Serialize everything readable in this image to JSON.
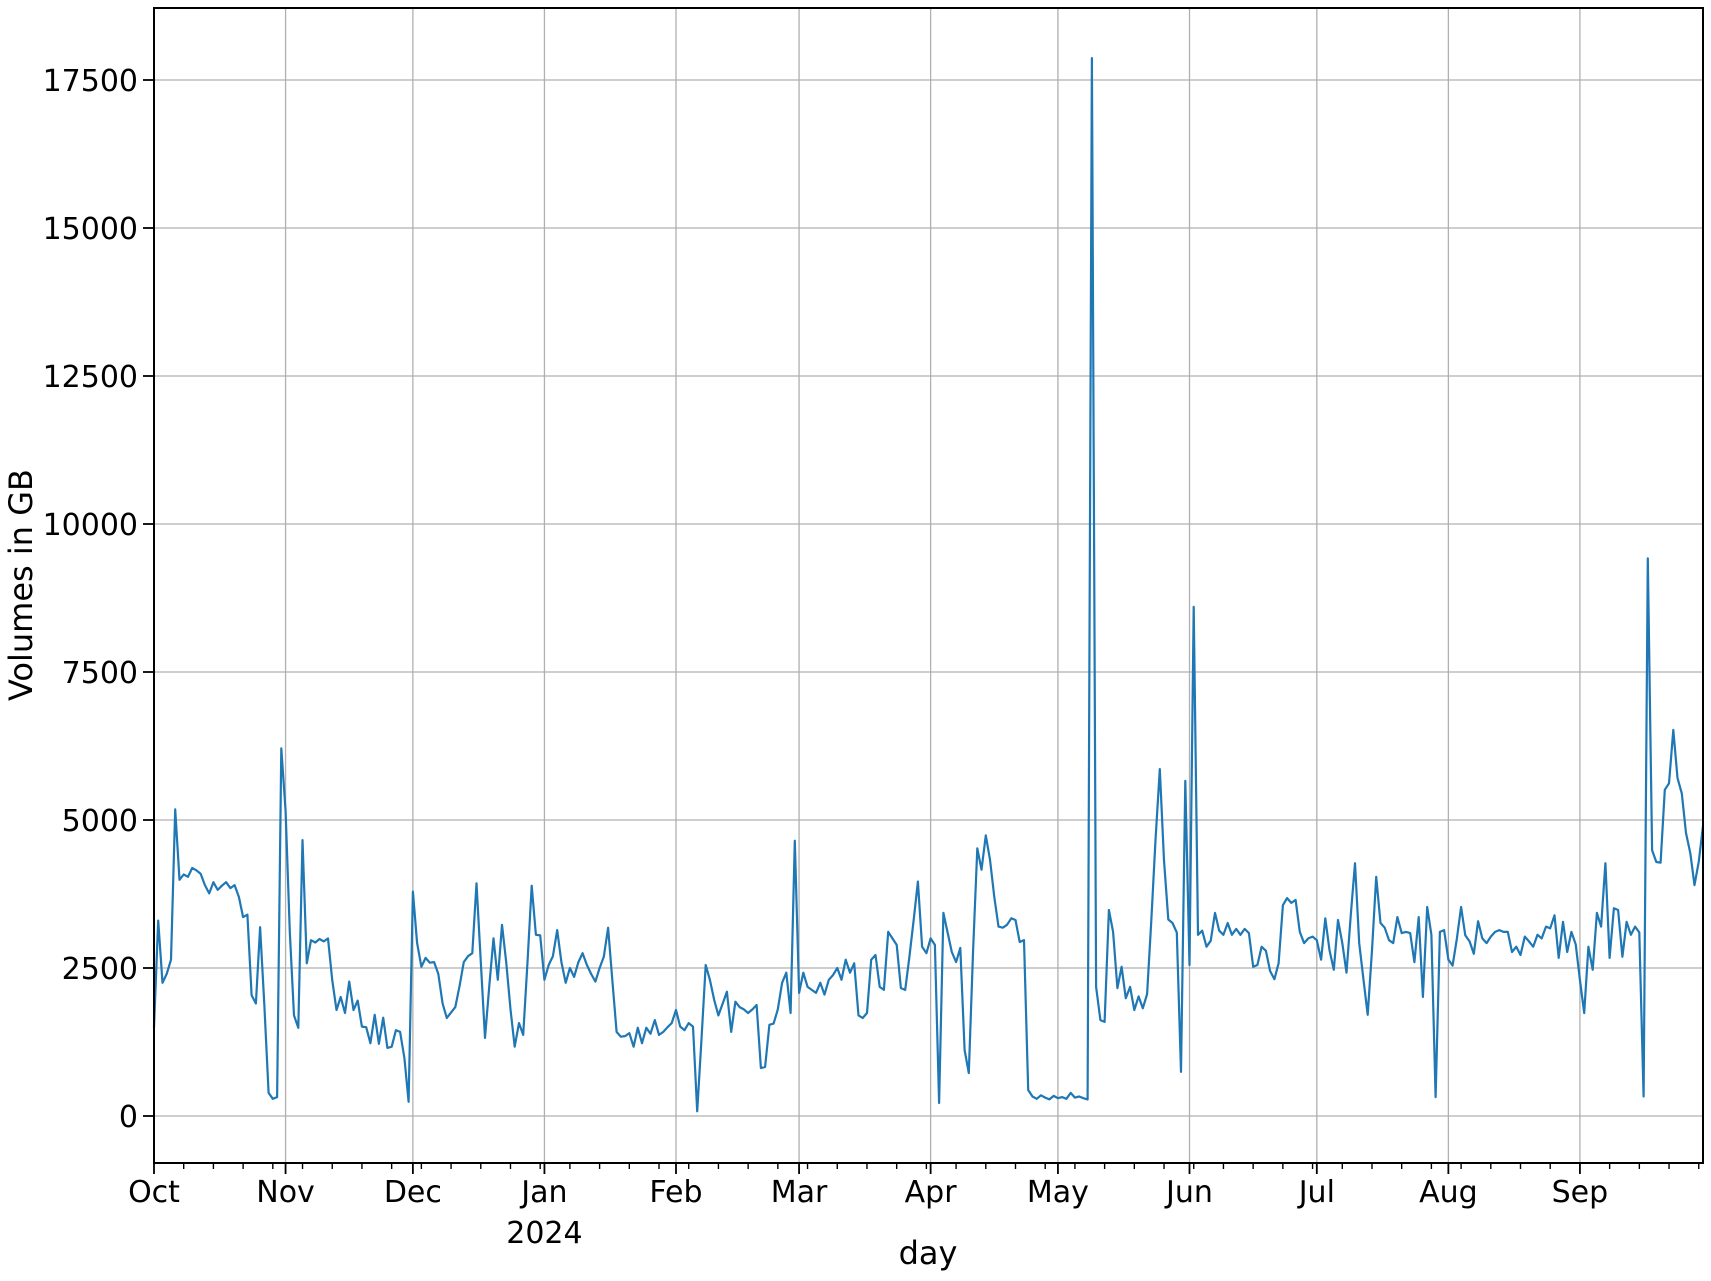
{
  "figure": {
    "ylabel": "Volumes in GB",
    "xlabel": "day",
    "year_annotation": "2024",
    "line_color": "#1f77b4",
    "grid_color": "#b0b0b0",
    "spine_color": "#000000",
    "background": "#ffffff"
  },
  "chart_data": {
    "type": "line",
    "title": "",
    "xlabel": "day",
    "ylabel": "Volumes in GB",
    "x_range": "2023-10-01 to 2024-09-30",
    "grid": true,
    "legend_position": "none",
    "x_tick_labels": [
      "Oct",
      "Nov",
      "Dec",
      "Jan",
      "Feb",
      "Mar",
      "Apr",
      "May",
      "Jun",
      "Jul",
      "Aug",
      "Sep"
    ],
    "x_tick_day_offsets": [
      0,
      31,
      61,
      92,
      123,
      152,
      183,
      213,
      244,
      274,
      305,
      336
    ],
    "year_annotation_tick_index": 3,
    "minor_tick_interval_days": 7,
    "y_ticks": [
      0,
      2500,
      5000,
      7500,
      10000,
      12500,
      15000,
      17500
    ],
    "ylim": [
      -800,
      18700
    ],
    "series": [
      {
        "name": "Volumes in GB",
        "values": [
          1500,
          3300,
          2250,
          2400,
          2640,
          5180,
          3990,
          4080,
          4040,
          4190,
          4150,
          4090,
          3900,
          3760,
          3950,
          3820,
          3890,
          3950,
          3850,
          3900,
          3700,
          3360,
          3400,
          2040,
          1900,
          3190,
          1890,
          390,
          290,
          320,
          6210,
          5150,
          3110,
          1700,
          1490,
          4660,
          2580,
          2970,
          2930,
          2990,
          2950,
          3000,
          2300,
          1790,
          2010,
          1740,
          2270,
          1790,
          1950,
          1510,
          1500,
          1230,
          1710,
          1220,
          1660,
          1150,
          1170,
          1450,
          1420,
          980,
          240,
          3790,
          2920,
          2520,
          2670,
          2590,
          2600,
          2400,
          1900,
          1655,
          1750,
          1840,
          2200,
          2600,
          2700,
          2750,
          3930,
          2600,
          1320,
          2200,
          3000,
          2300,
          3230,
          2600,
          1800,
          1170,
          1570,
          1370,
          2600,
          3890,
          3060,
          3050,
          2300,
          2550,
          2700,
          3140,
          2600,
          2250,
          2500,
          2350,
          2600,
          2750,
          2550,
          2400,
          2270,
          2500,
          2690,
          3180,
          2300,
          1420,
          1340,
          1350,
          1400,
          1170,
          1490,
          1230,
          1490,
          1390,
          1620,
          1370,
          1420,
          1500,
          1570,
          1790,
          1510,
          1450,
          1570,
          1510,
          80,
          1300,
          2550,
          2300,
          1960,
          1700,
          1900,
          2100,
          1420,
          1930,
          1840,
          1800,
          1740,
          1800,
          1875,
          810,
          830,
          1540,
          1560,
          1800,
          2250,
          2420,
          1740,
          4650,
          2080,
          2420,
          2180,
          2130,
          2080,
          2250,
          2050,
          2300,
          2380,
          2500,
          2300,
          2640,
          2420,
          2580,
          1700,
          1655,
          1740,
          2640,
          2720,
          2180,
          2130,
          3110,
          3000,
          2890,
          2160,
          2130,
          2690,
          3300,
          3960,
          2860,
          2750,
          3000,
          2890,
          220,
          3430,
          3100,
          2770,
          2600,
          2840,
          1115,
          725,
          2800,
          4520,
          4160,
          4740,
          4330,
          3700,
          3200,
          3180,
          3230,
          3340,
          3310,
          2940,
          2970,
          440,
          330,
          290,
          350,
          310,
          280,
          340,
          300,
          320,
          290,
          390,
          310,
          330,
          300,
          280,
          17870,
          2180,
          1620,
          1590,
          3480,
          3110,
          2160,
          2520,
          1990,
          2180,
          1790,
          2020,
          1820,
          2060,
          3300,
          4660,
          5860,
          4320,
          3320,
          3260,
          3100,
          745,
          5660,
          2550,
          8600,
          3060,
          3130,
          2860,
          2960,
          3430,
          3130,
          3060,
          3260,
          3060,
          3160,
          3060,
          3160,
          3090,
          2520,
          2550,
          2860,
          2790,
          2450,
          2310,
          2580,
          3560,
          3680,
          3600,
          3650,
          3110,
          2920,
          3000,
          3030,
          2970,
          2640,
          3340,
          2800,
          2470,
          3310,
          2920,
          2420,
          3400,
          4270,
          2920,
          2300,
          1710,
          2800,
          4040,
          3260,
          3180,
          2970,
          2920,
          3360,
          3090,
          3110,
          3090,
          2600,
          3360,
          2010,
          3530,
          3060,
          320,
          3110,
          3140,
          2640,
          2540,
          3000,
          3530,
          3050,
          2950,
          2740,
          3290,
          3000,
          2920,
          3030,
          3110,
          3140,
          3110,
          3110,
          2770,
          2860,
          2720,
          3030,
          2950,
          2860,
          3060,
          3000,
          3200,
          3170,
          3390,
          2670,
          3280,
          2770,
          3110,
          2900,
          2300,
          1740,
          2860,
          2470,
          3430,
          3200,
          4270,
          2670,
          3510,
          3480,
          2690,
          3280,
          3060,
          3200,
          3100,
          330,
          9420,
          4490,
          4290,
          4280,
          5510,
          5620,
          6520,
          5710,
          5450,
          4780,
          4440,
          3900,
          4300,
          4900
        ]
      }
    ]
  }
}
